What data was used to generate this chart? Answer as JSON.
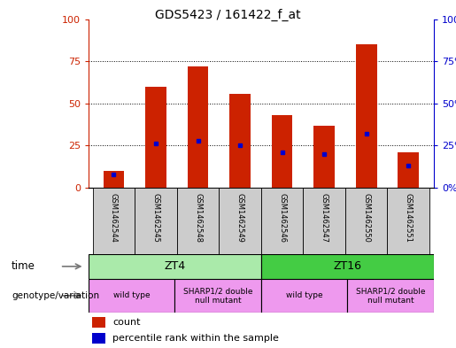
{
  "title": "GDS5423 / 161422_f_at",
  "samples": [
    "GSM1462544",
    "GSM1462545",
    "GSM1462548",
    "GSM1462549",
    "GSM1462546",
    "GSM1462547",
    "GSM1462550",
    "GSM1462551"
  ],
  "counts": [
    10,
    60,
    72,
    56,
    43,
    37,
    85,
    21
  ],
  "percentile_ranks": [
    8,
    26,
    28,
    25,
    21,
    20,
    32,
    13
  ],
  "bar_color": "#cc2200",
  "marker_color": "#0000cc",
  "ylim": [
    0,
    100
  ],
  "yticks": [
    0,
    25,
    50,
    75,
    100
  ],
  "bar_width": 0.5,
  "tick_color_left": "#cc2200",
  "tick_color_right": "#0000cc",
  "sample_bg": "#cccccc",
  "time_groups": [
    {
      "label": "ZT4",
      "start": 0,
      "end": 4,
      "color": "#aaeaaa"
    },
    {
      "label": "ZT16",
      "start": 4,
      "end": 8,
      "color": "#44cc44"
    }
  ],
  "geno_groups": [
    {
      "label": "wild type",
      "start": 0,
      "end": 2,
      "color": "#ee99ee"
    },
    {
      "label": "SHARP1/2 double\nnull mutant",
      "start": 2,
      "end": 4,
      "color": "#ee99ee"
    },
    {
      "label": "wild type",
      "start": 4,
      "end": 6,
      "color": "#ee99ee"
    },
    {
      "label": "SHARP1/2 double\nnull mutant",
      "start": 6,
      "end": 8,
      "color": "#ee99ee"
    }
  ]
}
